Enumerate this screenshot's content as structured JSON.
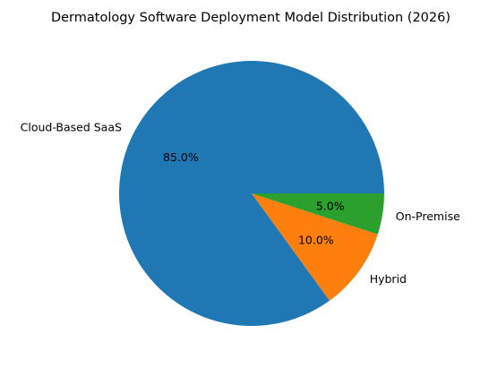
{
  "chart_data": {
    "type": "pie",
    "title": "Dermatology Software Deployment Model Distribution (2026)",
    "slices": [
      {
        "label": "Cloud-Based SaaS",
        "value": 85.0,
        "pct_label": "85.0%",
        "color": "#1f77b4"
      },
      {
        "label": "Hybrid",
        "value": 10.0,
        "pct_label": "10.0%",
        "color": "#ff7f0e"
      },
      {
        "label": "On-Premise",
        "value": 5.0,
        "pct_label": "5.0%",
        "color": "#2ca02c"
      }
    ],
    "start_angle_deg": 0,
    "direction": "counterclockwise",
    "legend": "none"
  }
}
